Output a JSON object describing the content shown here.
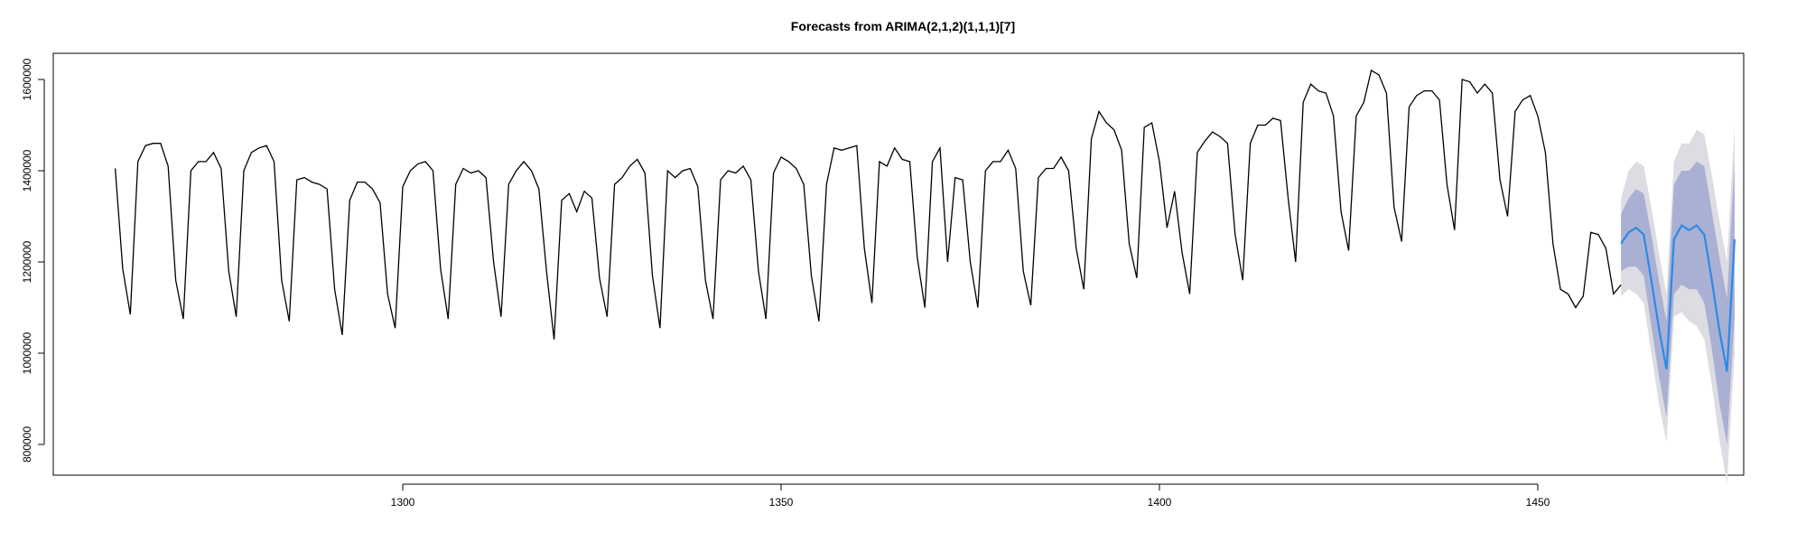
{
  "chart_data": {
    "type": "line",
    "title": "Forecasts from ARIMA(2,1,2)(1,1,1)[7]",
    "xlabel": "",
    "ylabel": "",
    "xlim": [
      1257,
      1475
    ],
    "ylim": [
      750000,
      1650000
    ],
    "x_ticks": [
      1300,
      1350,
      1400,
      1450
    ],
    "y_ticks": [
      800000,
      1000000,
      1200000,
      1400000,
      1600000
    ],
    "y_tick_labels": [
      "800000",
      "1000000",
      "1200000",
      "1400000",
      "1600000"
    ],
    "grid": false,
    "legend": "none",
    "colors": {
      "observed": "#000000",
      "forecast": "#2b8ae6",
      "band_80": "#aab0d3",
      "band_95": "#dcdce2"
    },
    "series": [
      {
        "x_start": 1262,
        "values": [
          1405000,
          1185000,
          1085000,
          1420000,
          1455000,
          1460000,
          1460000,
          1410000,
          1160000,
          1075000,
          1400000,
          1420000,
          1420000,
          1440000,
          1405000,
          1180000,
          1080000,
          1400000,
          1440000,
          1450000,
          1455000,
          1420000,
          1160000,
          1070000,
          1380000,
          1385000,
          1375000,
          1370000,
          1360000,
          1140000,
          1040000,
          1335000,
          1375000,
          1375000,
          1360000,
          1330000,
          1130000,
          1055000,
          1365000,
          1400000,
          1415000,
          1420000,
          1400000,
          1185000,
          1075000,
          1370000,
          1405000,
          1395000,
          1400000,
          1385000,
          1200000,
          1080000,
          1370000,
          1400000,
          1420000,
          1400000,
          1360000,
          1180000,
          1030000,
          1335000,
          1350000,
          1310000,
          1355000,
          1340000,
          1165000,
          1080000,
          1370000,
          1385000,
          1410000,
          1425000,
          1395000,
          1170000,
          1055000,
          1400000,
          1385000,
          1400000,
          1405000,
          1365000,
          1160000,
          1075000,
          1380000,
          1400000,
          1395000,
          1410000,
          1380000,
          1180000,
          1075000,
          1395000,
          1430000,
          1420000,
          1405000,
          1370000,
          1170000,
          1070000,
          1370000,
          1450000,
          1445000,
          1450000,
          1455000,
          1230000,
          1110000,
          1420000,
          1410000,
          1450000,
          1425000,
          1420000,
          1210000,
          1100000,
          1420000,
          1450000,
          1200000,
          1385000,
          1380000,
          1200000,
          1100000,
          1400000,
          1420000,
          1420000,
          1445000,
          1405000,
          1180000,
          1105000,
          1385000,
          1405000,
          1405000,
          1430000,
          1400000,
          1230000,
          1140000,
          1470000,
          1530000,
          1505000,
          1490000,
          1445000,
          1240000,
          1165000,
          1495000,
          1505000,
          1420000,
          1275000,
          1355000,
          1220000,
          1130000,
          1440000,
          1465000,
          1485000,
          1475000,
          1460000,
          1260000,
          1160000,
          1460000,
          1500000,
          1500000,
          1515000,
          1510000,
          1340000,
          1200000,
          1550000,
          1590000,
          1575000,
          1570000,
          1520000,
          1310000,
          1225000,
          1520000,
          1550000,
          1620000,
          1610000,
          1570000,
          1320000,
          1245000,
          1540000,
          1565000,
          1575000,
          1575000,
          1555000,
          1370000,
          1270000,
          1600000,
          1595000,
          1570000,
          1590000,
          1570000,
          1380000,
          1300000,
          1530000,
          1555000,
          1565000,
          1520000,
          1440000,
          1240000,
          1140000,
          1130000,
          1100000,
          1125000,
          1265000,
          1260000,
          1230000,
          1130000,
          1150000
        ]
      },
      {
        "name": "",
        "x_start": 1461,
        "values": [
          1240000,
          1265000,
          1275000,
          1260000,
          1160000,
          1055000,
          965000,
          1250000,
          1280000,
          1270000,
          1280000,
          1260000,
          1160000,
          1050000,
          960000,
          1250000
        ],
        "lo80": [
          1180000,
          1190000,
          1190000,
          1170000,
          1060000,
          950000,
          860000,
          1130000,
          1150000,
          1140000,
          1140000,
          1110000,
          1010000,
          890000,
          800000,
          1080000
        ],
        "hi80": [
          1305000,
          1340000,
          1360000,
          1350000,
          1260000,
          1160000,
          1070000,
          1370000,
          1400000,
          1400000,
          1420000,
          1410000,
          1310000,
          1210000,
          1120000,
          1420000
        ],
        "lo95": [
          1125000,
          1140000,
          1130000,
          1110000,
          1000000,
          890000,
          805000,
          1080000,
          1090000,
          1070000,
          1060000,
          1030000,
          930000,
          810000,
          715000,
          1000000
        ],
        "hi95": [
          1340000,
          1400000,
          1420000,
          1410000,
          1320000,
          1220000,
          1130000,
          1420000,
          1460000,
          1460000,
          1490000,
          1480000,
          1390000,
          1290000,
          1200000,
          1500000
        ]
      }
    ]
  }
}
